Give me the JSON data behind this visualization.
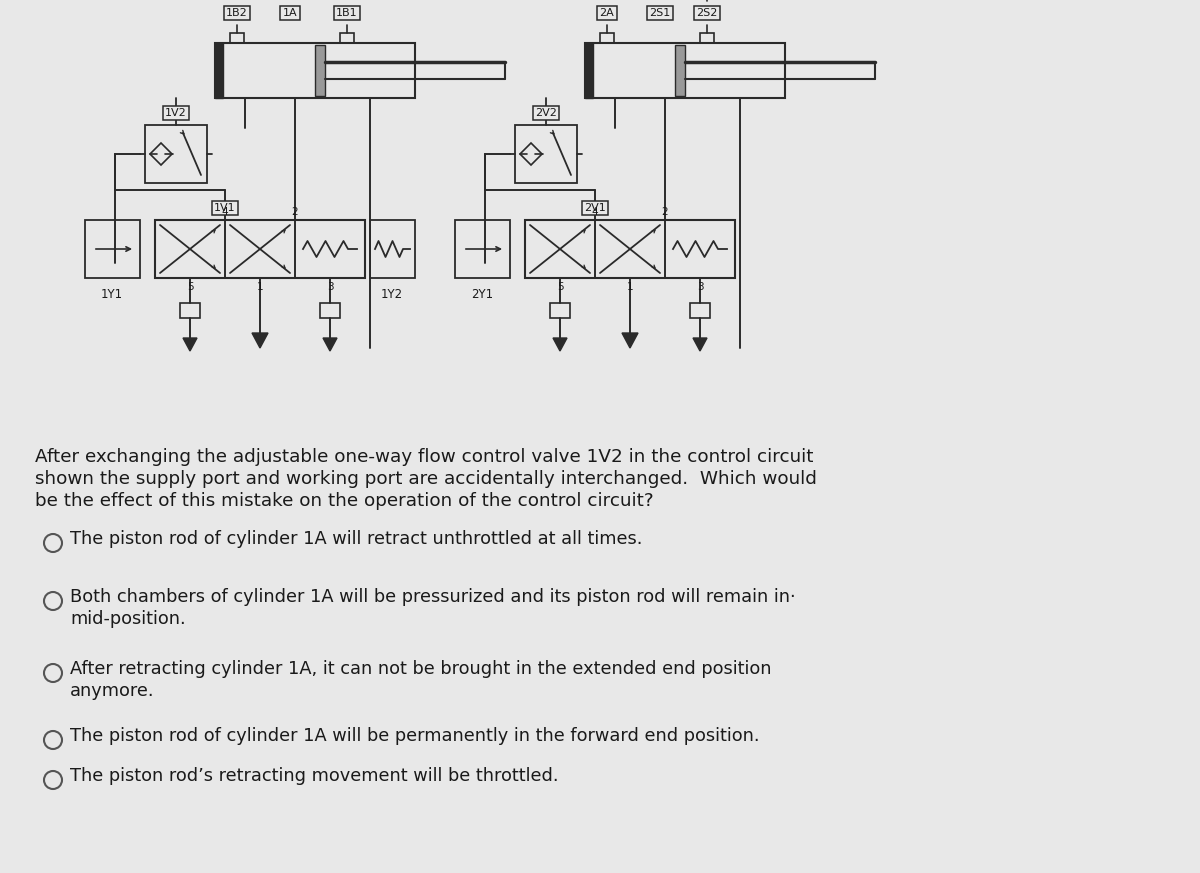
{
  "bg_color": "#e8e8e8",
  "line_color": "#2a2a2a",
  "text_color": "#1a1a1a",
  "question_text_line1": "After exchanging the adjustable one-way flow control valve 1V2 in the control circuit",
  "question_text_line2": "shown the supply port and working port are accidentally interchanged.  Which would",
  "question_text_line3": "be the effect of this mistake on the operation of the control circuit?",
  "options": [
    "The piston rod of cylinder 1A will retract unthrottled at all times.",
    "Both chambers of cylinder 1A will be pressurized and its piston rod will remain in·\n    mid-position.",
    "After retracting cylinder 1A, it can not be brought in the extended end position\n    anymore.",
    "The piston rod of cylinder 1A will be permanently in the forward end position.",
    "The piston rod’s retracting movement will be throttled."
  ],
  "option_lines": [
    [
      "The piston rod of cylinder 1A will retract unthrottled at all times."
    ],
    [
      "Both chambers of cylinder 1A will be pressurized and its piston rod will remain in·",
      "    mid-position."
    ],
    [
      "After retracting cylinder 1A, it can not be brought in the extended end position",
      "    anymore."
    ],
    [
      "The piston rod of cylinder 1A will be permanently in the forward end position."
    ],
    [
      "The piston rod’s retracting movement will be throttled."
    ]
  ],
  "label_1B2": "1B2",
  "label_1A": "1A",
  "label_1B1": "1B1",
  "label_2A": "2A",
  "label_2S1": "2S1",
  "label_2S2": "2S2",
  "label_1V2": "1V2",
  "label_2V2": "2V2",
  "label_1V1": "1V1",
  "label_2V1": "2V1",
  "label_1Y1": "1Y1",
  "label_1Y2": "1Y2",
  "label_2Y1": "2Y1"
}
